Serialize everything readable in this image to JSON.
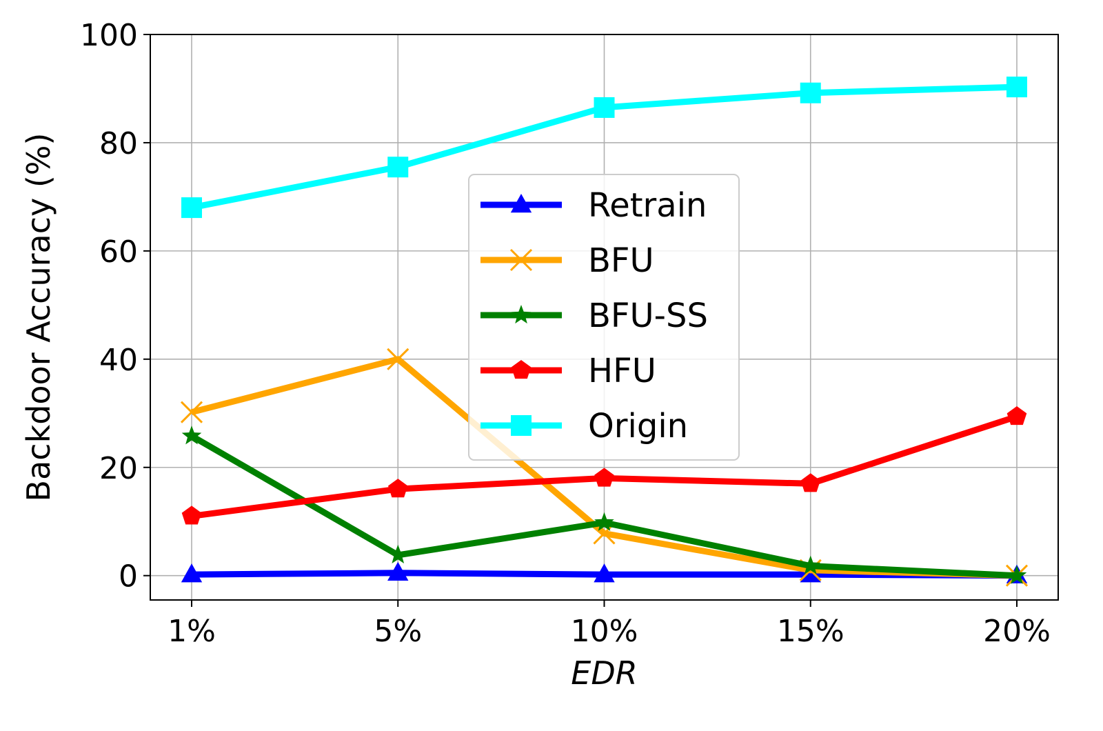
{
  "chart_data": {
    "type": "line",
    "categories": [
      "1%",
      "5%",
      "10%",
      "15%",
      "20%"
    ],
    "xlabel": "EDR",
    "ylabel": "Backdoor Accuracy (%)",
    "ylim": [
      -4.5,
      100
    ],
    "yticks": [
      0,
      20,
      40,
      60,
      80,
      100
    ],
    "grid": true,
    "legend_position": "center",
    "series": [
      {
        "name": "Retrain",
        "color": "#0000ff",
        "marker": "triangle",
        "values": [
          0.2,
          0.5,
          0.2,
          0.2,
          0.0
        ]
      },
      {
        "name": "BFU",
        "color": "#ffa500",
        "marker": "x",
        "values": [
          30.2,
          40.0,
          7.8,
          1.0,
          0.0
        ]
      },
      {
        "name": "BFU-SS",
        "color": "#008000",
        "marker": "star",
        "values": [
          25.8,
          3.8,
          9.8,
          1.8,
          0.0
        ]
      },
      {
        "name": "HFU",
        "color": "#ff0000",
        "marker": "pentagon",
        "values": [
          11.0,
          16.0,
          18.0,
          17.0,
          29.4
        ]
      },
      {
        "name": "Origin",
        "color": "#00ffff",
        "marker": "square",
        "values": [
          68.0,
          75.5,
          86.5,
          89.2,
          90.3
        ]
      }
    ]
  }
}
